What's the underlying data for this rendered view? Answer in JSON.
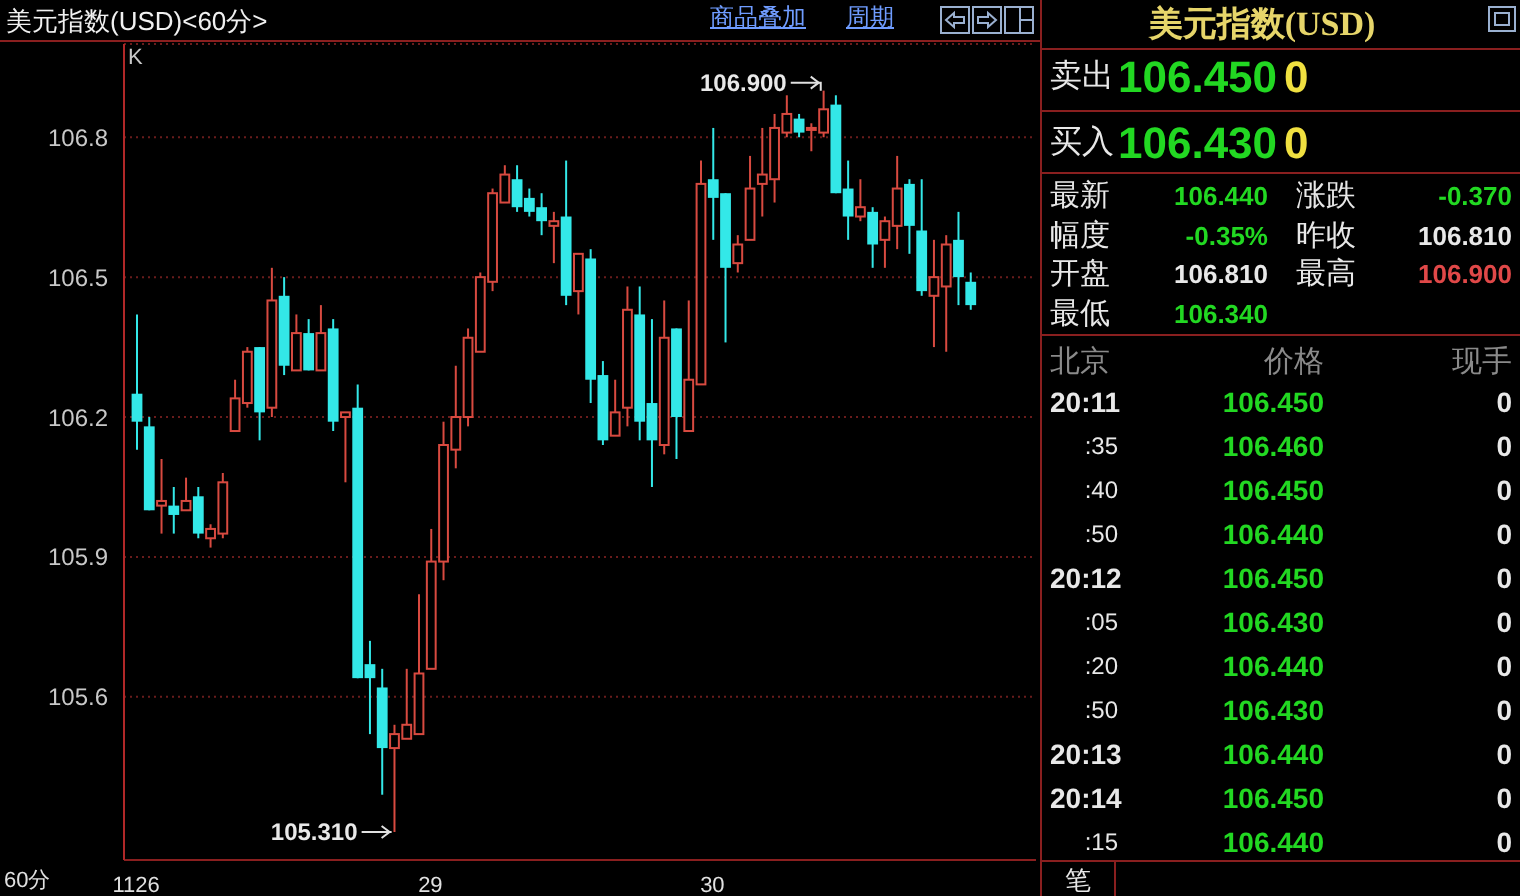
{
  "chart_data": [
    {
      "type": "candlestick",
      "title": "美元指数(USD)<60分>",
      "categories": [
        "1126",
        null,
        null,
        null,
        null,
        null,
        null,
        null,
        null,
        null,
        null,
        null,
        null,
        null,
        null,
        null,
        null,
        null,
        null,
        null,
        null,
        null,
        null,
        null,
        "29",
        null,
        null,
        null,
        null,
        null,
        null,
        null,
        null,
        null,
        null,
        null,
        null,
        null,
        null,
        null,
        null,
        null,
        null,
        null,
        null,
        null,
        null,
        "30",
        null,
        null,
        null,
        null,
        null,
        null,
        null,
        null,
        null,
        null,
        null,
        null,
        null,
        null,
        null,
        null,
        null,
        null,
        null,
        null,
        null
      ],
      "ohlc": [
        [
          106.25,
          106.42,
          106.13,
          106.19
        ],
        [
          106.18,
          106.2,
          106.0,
          106.0
        ],
        [
          106.01,
          106.11,
          105.95,
          106.02
        ],
        [
          106.01,
          106.05,
          105.95,
          105.99
        ],
        [
          106.0,
          106.07,
          106.0,
          106.02
        ],
        [
          106.03,
          106.05,
          105.94,
          105.95
        ],
        [
          105.94,
          105.97,
          105.92,
          105.96
        ],
        [
          105.95,
          106.08,
          105.94,
          106.06
        ],
        [
          106.17,
          106.28,
          106.17,
          106.24
        ],
        [
          106.23,
          106.35,
          106.22,
          106.34
        ],
        [
          106.35,
          106.35,
          106.15,
          106.21
        ],
        [
          106.22,
          106.52,
          106.2,
          106.45
        ],
        [
          106.46,
          106.5,
          106.29,
          106.31
        ],
        [
          106.3,
          106.42,
          106.3,
          106.38
        ],
        [
          106.38,
          106.41,
          106.3,
          106.3
        ],
        [
          106.3,
          106.44,
          106.3,
          106.38
        ],
        [
          106.39,
          106.41,
          106.17,
          106.19
        ],
        [
          106.2,
          106.21,
          106.06,
          106.21
        ],
        [
          106.22,
          106.27,
          105.64,
          105.64
        ],
        [
          105.67,
          105.72,
          105.52,
          105.64
        ],
        [
          105.62,
          105.66,
          105.39,
          105.49
        ],
        [
          105.49,
          105.54,
          105.31,
          105.52
        ],
        [
          105.51,
          105.66,
          105.51,
          105.54
        ],
        [
          105.52,
          105.82,
          105.52,
          105.65
        ],
        [
          105.66,
          105.96,
          105.66,
          105.89
        ],
        [
          105.89,
          106.19,
          105.85,
          106.14
        ],
        [
          106.13,
          106.31,
          106.09,
          106.2
        ],
        [
          106.2,
          106.39,
          106.18,
          106.37
        ],
        [
          106.34,
          106.51,
          106.34,
          106.5
        ],
        [
          106.49,
          106.69,
          106.47,
          106.68
        ],
        [
          106.66,
          106.74,
          106.66,
          106.72
        ],
        [
          106.71,
          106.74,
          106.64,
          106.65
        ],
        [
          106.67,
          106.69,
          106.63,
          106.64
        ],
        [
          106.65,
          106.68,
          106.59,
          106.62
        ],
        [
          106.61,
          106.64,
          106.53,
          106.62
        ],
        [
          106.63,
          106.75,
          106.44,
          106.46
        ],
        [
          106.47,
          106.55,
          106.42,
          106.55
        ],
        [
          106.54,
          106.56,
          106.23,
          106.28
        ],
        [
          106.29,
          106.32,
          106.14,
          106.15
        ],
        [
          106.16,
          106.28,
          106.16,
          106.21
        ],
        [
          106.22,
          106.48,
          106.18,
          106.43
        ],
        [
          106.42,
          106.48,
          106.15,
          106.19
        ],
        [
          106.23,
          106.41,
          106.05,
          106.15
        ],
        [
          106.14,
          106.45,
          106.12,
          106.37
        ],
        [
          106.39,
          106.39,
          106.11,
          106.2
        ],
        [
          106.17,
          106.45,
          106.17,
          106.28
        ],
        [
          106.27,
          106.75,
          106.27,
          106.7
        ],
        [
          106.71,
          106.82,
          106.58,
          106.67
        ],
        [
          106.68,
          106.68,
          106.36,
          106.52
        ],
        [
          106.53,
          106.59,
          106.51,
          106.57
        ],
        [
          106.58,
          106.76,
          106.58,
          106.69
        ],
        [
          106.7,
          106.82,
          106.63,
          106.72
        ],
        [
          106.71,
          106.85,
          106.66,
          106.82
        ],
        [
          106.81,
          106.89,
          106.8,
          106.85
        ],
        [
          106.84,
          106.85,
          106.8,
          106.81
        ],
        [
          106.82,
          106.83,
          106.77,
          106.82
        ],
        [
          106.81,
          106.9,
          106.8,
          106.86
        ],
        [
          106.87,
          106.89,
          106.68,
          106.68
        ],
        [
          106.69,
          106.75,
          106.58,
          106.63
        ],
        [
          106.63,
          106.71,
          106.62,
          106.65
        ],
        [
          106.64,
          106.65,
          106.52,
          106.57
        ],
        [
          106.58,
          106.63,
          106.52,
          106.62
        ],
        [
          106.61,
          106.76,
          106.56,
          106.69
        ],
        [
          106.7,
          106.71,
          106.55,
          106.61
        ],
        [
          106.6,
          106.71,
          106.46,
          106.47
        ],
        [
          106.46,
          106.58,
          106.35,
          106.5
        ],
        [
          106.48,
          106.59,
          106.34,
          106.57
        ],
        [
          106.58,
          106.64,
          106.44,
          106.5
        ],
        [
          106.49,
          106.51,
          106.43,
          106.44
        ]
      ],
      "ylim": [
        105.25,
        107.0
      ],
      "yticks": [
        105.6,
        105.9,
        106.2,
        106.5,
        106.8
      ],
      "grid": "y",
      "legend": false,
      "annotations": [
        "K",
        "106.900",
        "105.310",
        "60分",
        "商品叠加",
        "周期"
      ]
    },
    {
      "type": "other",
      "title": "美元指数(USD)",
      "annotations": [
        "卖出",
        "106.450",
        "0",
        "买入",
        "106.430",
        "0",
        "最新",
        "106.440",
        "涨跌",
        "-0.370",
        "幅度",
        "-0.35%",
        "昨收",
        "106.810",
        "开盘",
        "106.810",
        "最高",
        "106.900",
        "最低",
        "106.340",
        "北京",
        "价格",
        "现手",
        "20:11",
        "106.450",
        "0",
        ":35",
        "106.460",
        "0",
        ":40",
        "106.450",
        "0",
        ":50",
        "106.440",
        "0",
        "20:12",
        "106.450",
        "0",
        ":05",
        "106.430",
        "0",
        ":20",
        "106.440",
        "0",
        ":50",
        "106.430",
        "0",
        "20:13",
        "106.440",
        "0",
        "20:14",
        "106.450",
        "0",
        ":15",
        "106.440",
        "0",
        "笔"
      ]
    }
  ]
}
